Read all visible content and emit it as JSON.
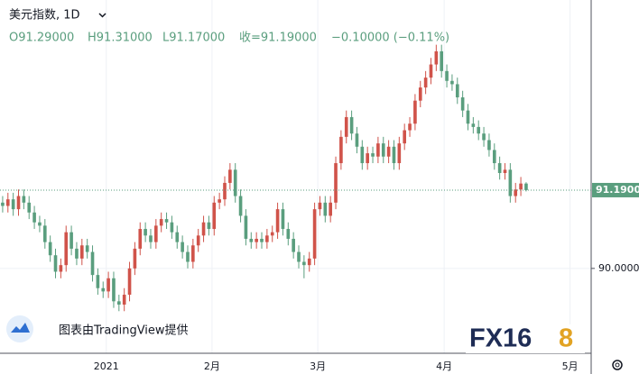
{
  "chart_data": {
    "type": "candlestick",
    "title": "美元指数, 1D",
    "ohlc_legend": [
      "O91.29000",
      "H91.31000",
      "L91.17000",
      "收=91.19000",
      "−0.10000 (−0.11%)"
    ],
    "up_color": "#d0534a",
    "down_color": "#5a9e7e",
    "grid": true,
    "open": [
      91.0,
      90.95,
      91.05,
      90.9,
      91.1,
      91.0,
      90.85,
      90.7,
      90.65,
      90.4,
      90.2,
      89.95,
      90.05,
      90.55,
      90.3,
      90.15,
      90.35,
      90.25,
      89.9,
      89.7,
      89.65,
      89.85,
      89.5,
      89.45,
      89.6,
      90.0,
      90.3,
      90.6,
      90.5,
      90.4,
      90.65,
      90.75,
      90.7,
      90.55,
      90.4,
      90.25,
      90.1,
      90.35,
      90.5,
      90.7,
      90.6,
      91.0,
      91.05,
      91.3,
      91.5,
      91.1,
      90.8,
      90.45,
      90.4,
      90.45,
      90.4,
      90.5,
      90.55,
      90.9,
      90.6,
      90.45,
      90.25,
      90.1,
      90.05,
      90.15,
      90.9,
      91.0,
      90.8,
      91.0,
      91.6,
      92.0,
      92.3,
      92.05,
      91.85,
      91.6,
      91.75,
      91.7,
      91.9,
      91.7,
      91.85,
      91.6,
      91.9,
      92.1,
      92.2,
      92.55,
      92.75,
      92.9,
      93.1,
      93.3,
      93.0,
      92.85,
      92.8,
      92.6,
      92.4,
      92.2,
      92.15,
      92.05,
      91.95,
      91.8,
      91.6,
      91.45,
      91.5,
      91.1,
      91.2,
      91.29
    ],
    "high": [
      91.1,
      91.15,
      91.15,
      91.2,
      91.2,
      91.1,
      90.95,
      90.8,
      90.75,
      90.5,
      90.3,
      90.15,
      90.65,
      90.65,
      90.4,
      90.45,
      90.45,
      90.35,
      90.0,
      89.8,
      89.95,
      89.95,
      89.6,
      89.7,
      90.1,
      90.4,
      90.7,
      90.7,
      90.6,
      90.75,
      90.85,
      90.85,
      90.8,
      90.65,
      90.5,
      90.35,
      90.45,
      90.6,
      90.8,
      90.8,
      91.1,
      91.15,
      91.4,
      91.6,
      91.6,
      91.2,
      90.9,
      90.55,
      90.55,
      90.55,
      90.6,
      90.65,
      91.0,
      91.0,
      90.7,
      90.55,
      90.35,
      90.2,
      90.25,
      91.0,
      91.1,
      91.1,
      91.1,
      91.7,
      92.1,
      92.4,
      92.4,
      92.15,
      91.95,
      91.85,
      91.85,
      92.0,
      92.0,
      91.95,
      91.95,
      92.0,
      92.2,
      92.3,
      92.65,
      92.85,
      93.0,
      93.2,
      93.4,
      93.4,
      93.1,
      92.95,
      92.9,
      92.7,
      92.5,
      92.3,
      92.25,
      92.15,
      92.05,
      91.9,
      91.7,
      91.6,
      91.6,
      91.3,
      91.39,
      91.31
    ],
    "low": [
      90.85,
      90.85,
      90.8,
      90.8,
      90.9,
      90.75,
      90.6,
      90.55,
      90.3,
      90.1,
      89.85,
      89.85,
      89.95,
      90.2,
      90.05,
      90.05,
      90.15,
      89.8,
      89.6,
      89.55,
      89.55,
      89.4,
      89.35,
      89.35,
      89.5,
      89.9,
      90.2,
      90.4,
      90.3,
      90.3,
      90.55,
      90.6,
      90.45,
      90.3,
      90.15,
      90.0,
      90.0,
      90.25,
      90.4,
      90.5,
      90.5,
      90.9,
      90.95,
      91.2,
      91.0,
      90.7,
      90.35,
      90.3,
      90.3,
      90.3,
      90.3,
      90.4,
      90.45,
      90.5,
      90.35,
      90.15,
      90.0,
      89.85,
      89.95,
      90.05,
      90.8,
      90.7,
      90.7,
      90.9,
      91.5,
      91.9,
      91.95,
      91.75,
      91.5,
      91.5,
      91.6,
      91.6,
      91.6,
      91.6,
      91.5,
      91.5,
      91.8,
      92.0,
      92.1,
      92.45,
      92.65,
      92.8,
      93.0,
      92.9,
      92.75,
      92.7,
      92.5,
      92.3,
      92.1,
      92.05,
      91.95,
      91.85,
      91.7,
      91.5,
      91.35,
      91.35,
      91.0,
      91.0,
      91.1,
      91.17
    ],
    "close": [
      90.95,
      91.05,
      90.9,
      91.1,
      91.0,
      90.85,
      90.7,
      90.65,
      90.4,
      90.2,
      89.95,
      90.05,
      90.55,
      90.3,
      90.15,
      90.35,
      90.25,
      89.9,
      89.7,
      89.65,
      89.85,
      89.5,
      89.45,
      89.6,
      90.0,
      90.3,
      90.6,
      90.5,
      90.4,
      90.65,
      90.75,
      90.7,
      90.55,
      90.4,
      90.25,
      90.1,
      90.35,
      90.5,
      90.7,
      90.6,
      91.0,
      91.05,
      91.3,
      91.5,
      91.1,
      90.8,
      90.45,
      90.4,
      90.45,
      90.4,
      90.5,
      90.55,
      90.9,
      90.6,
      90.45,
      90.25,
      90.1,
      90.05,
      90.15,
      90.9,
      91.0,
      90.8,
      91.0,
      91.6,
      92.0,
      92.3,
      92.05,
      91.85,
      91.6,
      91.75,
      91.7,
      91.9,
      91.7,
      91.85,
      91.6,
      91.9,
      92.1,
      92.2,
      92.55,
      92.75,
      92.9,
      93.1,
      93.3,
      93.0,
      92.85,
      92.8,
      92.6,
      92.4,
      92.2,
      92.15,
      92.05,
      91.95,
      91.8,
      91.6,
      91.45,
      91.5,
      91.1,
      91.2,
      91.29,
      91.19
    ],
    "xlim": [
      -0.5,
      111.3
    ],
    "xticks": [
      {
        "value": 19.6,
        "label": "2021"
      },
      {
        "value": 39.6,
        "label": "2月"
      },
      {
        "value": 59.6,
        "label": "3月"
      },
      {
        "value": 83.5,
        "label": "4月"
      },
      {
        "value": 107.3,
        "label": "5月"
      }
    ],
    "ylim": [
      88.71,
      94.08
    ],
    "yticks": [
      {
        "value": 90,
        "label": "90.00000"
      }
    ],
    "last_price": {
      "value": 91.19,
      "label": "91.19000"
    },
    "attribution": "图表由TradingView提供",
    "brand": [
      "FX16",
      "8"
    ]
  }
}
